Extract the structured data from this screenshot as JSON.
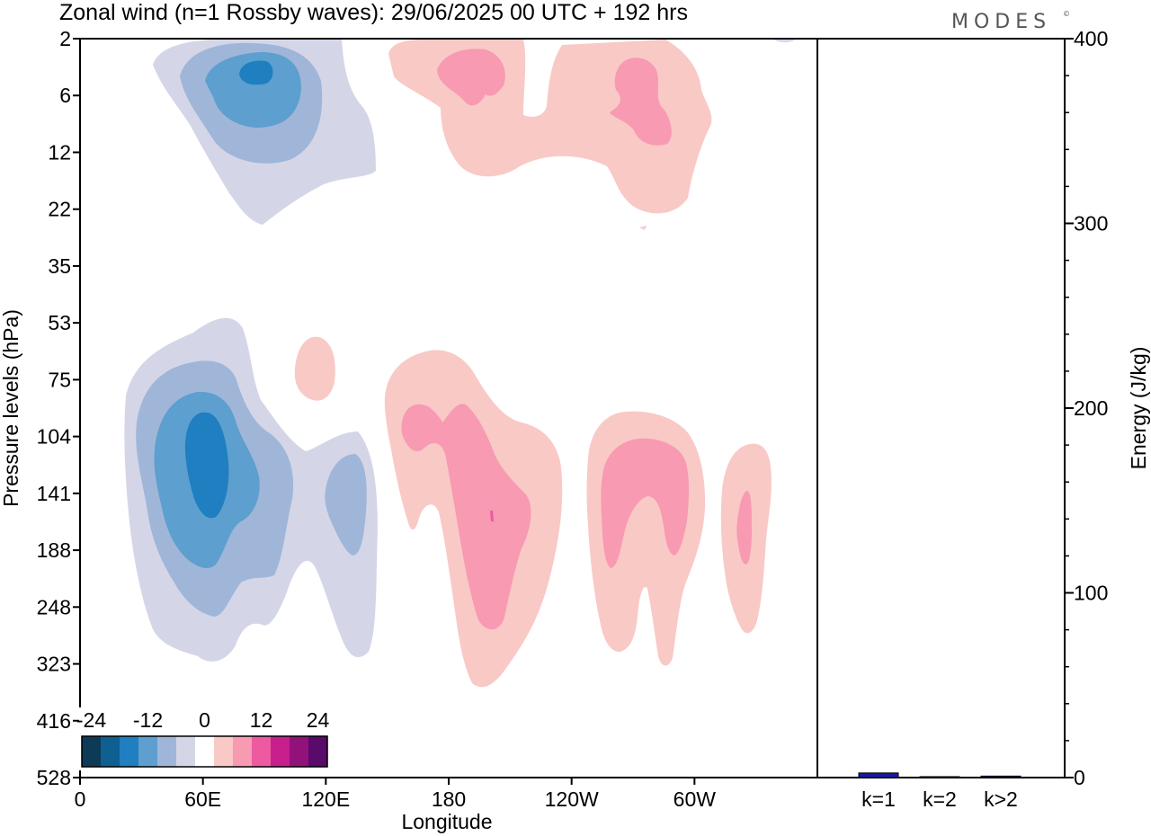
{
  "title": "Zonal wind (n=1 Rossby waves):  29/06/2025  00 UTC  + 192 hrs",
  "brand": "MODES",
  "brand_mark": "©",
  "chart_data": [
    {
      "type": "heatmap",
      "subtype": "filled-contour",
      "xlabel": "Longitude",
      "ylabel": "Pressure levels (hPa)",
      "x_ticks": [
        "0",
        "60E",
        "120E",
        "180",
        "120W",
        "60W"
      ],
      "x_tick_degrees": [
        0,
        60,
        120,
        180,
        240,
        300
      ],
      "x_range": [
        0,
        360
      ],
      "y_ticks": [
        "2",
        "6",
        "12",
        "22",
        "35",
        "53",
        "75",
        "104",
        "141",
        "188",
        "248",
        "323",
        "416",
        "528"
      ],
      "colorbar": {
        "tick_labels": [
          "-24",
          "-12",
          "0",
          "12",
          "24"
        ],
        "tick_values": [
          -24,
          -12,
          0,
          12,
          24
        ],
        "levels": [
          -27,
          -24,
          -21,
          -18,
          -15,
          -12,
          -9,
          -6,
          -3,
          3,
          6,
          9,
          12,
          15,
          18,
          21,
          24,
          27
        ],
        "colors": [
          "#0d3b57",
          "#0f5f93",
          "#1f7fc0",
          "#5d9fce",
          "#a0b6d8",
          "#d4d6e8",
          "#ffffff",
          "#f9c9c6",
          "#f79ab2",
          "#ec5ba2",
          "#c71f8c",
          "#92127a",
          "#5a0a6a"
        ],
        "position": "bottom-left"
      },
      "features": [
        {
          "sign": "negative",
          "peak": -21,
          "lon": 90,
          "level_hpa": 6
        },
        {
          "sign": "positive",
          "peak": 9,
          "lon": 185,
          "level_hpa": 5
        },
        {
          "sign": "positive",
          "peak": 9,
          "lon": 275,
          "level_hpa": 6
        },
        {
          "sign": "negative",
          "peak": -21,
          "lon": 62,
          "level_hpa": 130
        },
        {
          "sign": "negative",
          "peak": -9,
          "lon": 132,
          "level_hpa": 150
        },
        {
          "sign": "positive",
          "peak": 3,
          "lon": 112,
          "level_hpa": 70
        },
        {
          "sign": "positive",
          "peak": 12,
          "lon": 198,
          "level_hpa": 145
        },
        {
          "sign": "positive",
          "peak": 9,
          "lon": 270,
          "level_hpa": 145
        },
        {
          "sign": "positive",
          "peak": 9,
          "lon": 325,
          "level_hpa": 160
        }
      ]
    },
    {
      "type": "bar",
      "categories": [
        "k=1",
        "k=2",
        "k>2"
      ],
      "values": [
        2.5,
        0.5,
        0.8
      ],
      "ylabel": "Energy (J/kg)",
      "ylim": [
        0,
        400
      ],
      "y_ticks": [
        0,
        100,
        200,
        300,
        400
      ],
      "bar_color": "#1a1aa8"
    }
  ]
}
